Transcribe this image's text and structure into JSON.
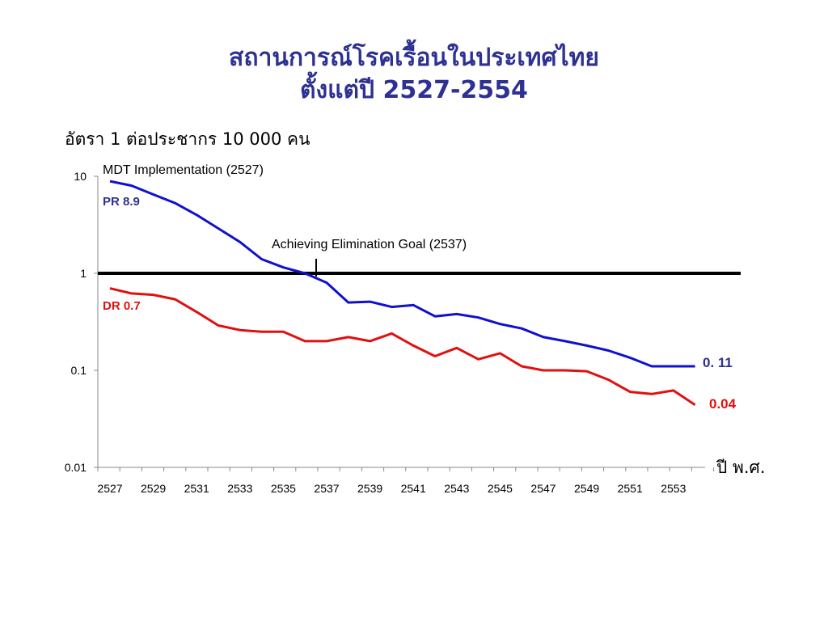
{
  "title_line1": "สถานการณ์โรคเรื้อนในประเทศไทย",
  "title_line2": "ตั้งแต่ปี 2527-2554",
  "chart_data": {
    "type": "line",
    "title": "สถานการณ์โรคเรื้อนในประเทศไทย ตั้งแต่ปี 2527-2554",
    "ylabel": "อัตรา 1 ต่อประชากร 10 000 คน",
    "xlabel": "ปี พ.ศ.",
    "y_scale": "log",
    "ylim": [
      0.01,
      10
    ],
    "y_ticks": [
      "10",
      "1",
      "0.1",
      "0.01"
    ],
    "x": [
      2527,
      2528,
      2529,
      2530,
      2531,
      2532,
      2533,
      2534,
      2535,
      2536,
      2537,
      2538,
      2539,
      2540,
      2541,
      2542,
      2543,
      2544,
      2545,
      2546,
      2547,
      2548,
      2549,
      2550,
      2551,
      2552,
      2553,
      2554
    ],
    "x_tick_labels": [
      "2527",
      "2529",
      "2531",
      "2533",
      "2535",
      "2537",
      "2539",
      "2541",
      "2543",
      "2545",
      "2547",
      "2549",
      "2551",
      "2553"
    ],
    "series": [
      {
        "name": "PR",
        "color": "#1010d0",
        "values": [
          8.9,
          8.0,
          6.5,
          5.3,
          4.0,
          2.9,
          2.1,
          1.4,
          1.15,
          1.0,
          0.8,
          0.5,
          0.51,
          0.45,
          0.47,
          0.36,
          0.38,
          0.35,
          0.3,
          0.27,
          0.22,
          0.2,
          0.18,
          0.16,
          0.135,
          0.11,
          0.11,
          0.11
        ]
      },
      {
        "name": "DR",
        "color": "#e01010",
        "values": [
          0.7,
          0.62,
          0.6,
          0.54,
          0.4,
          0.29,
          0.26,
          0.25,
          0.25,
          0.2,
          0.2,
          0.22,
          0.2,
          0.24,
          0.18,
          0.14,
          0.17,
          0.13,
          0.15,
          0.11,
          0.1,
          0.1,
          0.098,
          0.08,
          0.06,
          0.057,
          0.062,
          0.044
        ]
      }
    ],
    "reference_line": {
      "value": 1
    },
    "annotations": {
      "mdt": "MDT Implementation (2527)",
      "goal": "Achieving  Elimination Goal (2537)",
      "pr_start": "PR 8.9",
      "dr_start": "DR 0.7",
      "pr_end": "0. 11",
      "dr_end": "0.04"
    }
  }
}
